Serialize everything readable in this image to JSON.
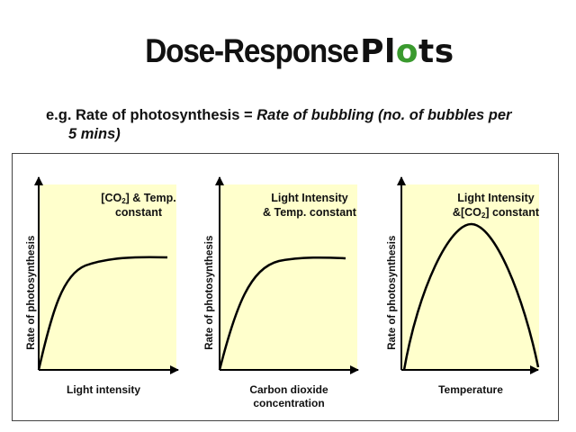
{
  "slide": {
    "title_part1": "Dose-Response ",
    "title_part2a": "Pl",
    "title_part2b": "o",
    "title_part2c": "ts",
    "line1_prefix": "e.g. Rate of photosynthesis = ",
    "line1_italic": "Rate of bubbling (no. of bubbles per",
    "line2_italic": "5 mins)"
  },
  "colors": {
    "panel_fill": "#ffffcc",
    "title_o_accent": "#3a9a2e",
    "curve": "#000000"
  },
  "panels": [
    {
      "condition": {
        "a": "[CO",
        "sub": "2",
        "b": "] & Temp.",
        "line2": "constant"
      },
      "ylabel": "Rate of photosynthesis",
      "xlabel": "Light intensity",
      "shape": "saturating"
    },
    {
      "condition": {
        "line1": "Light Intensity",
        "line2": "& Temp. constant"
      },
      "ylabel": "Rate of photosynthesis",
      "xlabel_line1": "Carbon dioxide",
      "xlabel_line2": "concentration",
      "shape": "saturating"
    },
    {
      "condition": {
        "line1": "Light Intensity",
        "line2a": "&[CO",
        "line2sub": "2",
        "line2b": "] constant"
      },
      "ylabel": "Rate of photosynthesis",
      "xlabel": "Temperature",
      "shape": "optimum"
    }
  ]
}
